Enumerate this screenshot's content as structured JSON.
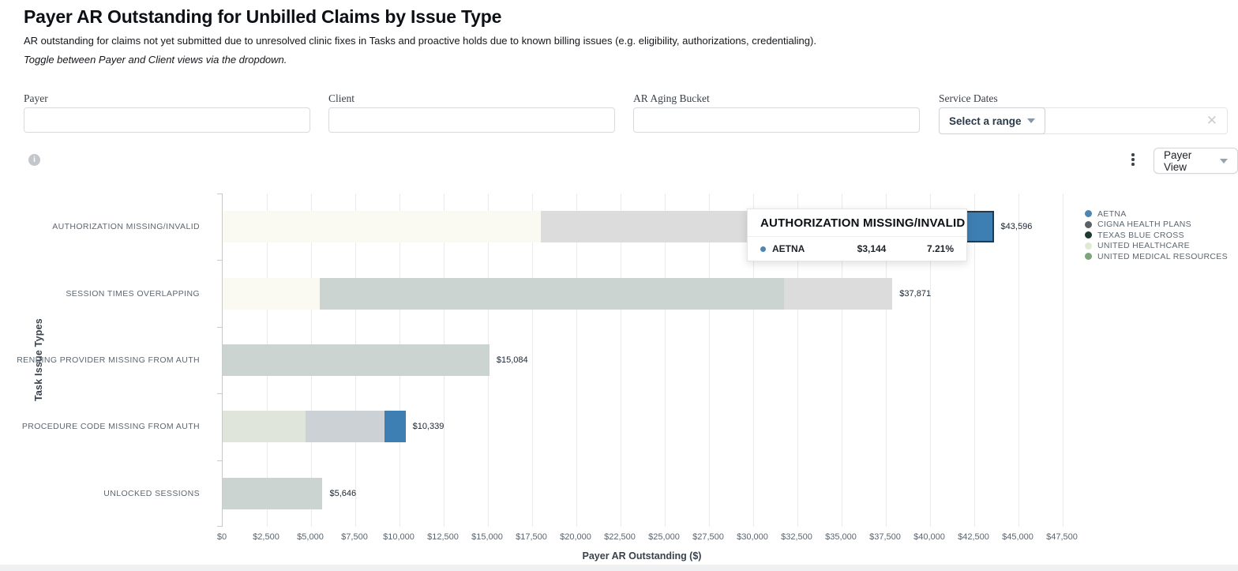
{
  "header": {
    "title": "Payer AR Outstanding for Unbilled Claims by Issue Type",
    "subtitle": "AR outstanding for claims not yet submitted due to unresolved clinic fixes in Tasks and proactive holds due to known billing issues (e.g. eligibility, authorizations, credentialing).",
    "note": "Toggle between Payer and Client views via the dropdown."
  },
  "filters": {
    "payer_label": "Payer",
    "payer_value": "",
    "client_label": "Client",
    "client_value": "",
    "ar_aging_label": "AR Aging Bucket",
    "ar_aging_value": "",
    "service_dates_label": "Service Dates",
    "select_range_label": "Select a range",
    "clear_icon": "✕"
  },
  "toolbar": {
    "info_icon_glyph": "i",
    "view_selector_label": "Payer View"
  },
  "chart_data": {
    "type": "bar",
    "variant": "horizontal-stacked",
    "title": "Payer AR Outstanding for Unbilled Claims by Issue Type",
    "xlabel": "Payer AR Outstanding ($)",
    "ylabel": "Task Issue Types",
    "xlim": [
      0,
      48250
    ],
    "grid": "vertical",
    "legend_position": "right",
    "x_ticks": [
      {
        "value": 0,
        "label": "$0"
      },
      {
        "value": 2500,
        "label": "$2,500"
      },
      {
        "value": 5000,
        "label": "$5,000"
      },
      {
        "value": 7500,
        "label": "$7,500"
      },
      {
        "value": 10000,
        "label": "$10,000"
      },
      {
        "value": 12500,
        "label": "$12,500"
      },
      {
        "value": 15000,
        "label": "$15,000"
      },
      {
        "value": 17500,
        "label": "$17,500"
      },
      {
        "value": 20000,
        "label": "$20,000"
      },
      {
        "value": 22500,
        "label": "$22,500"
      },
      {
        "value": 25000,
        "label": "$25,000"
      },
      {
        "value": 27500,
        "label": "$27,500"
      },
      {
        "value": 30000,
        "label": "$30,000"
      },
      {
        "value": 32500,
        "label": "$32,500"
      },
      {
        "value": 35000,
        "label": "$35,000"
      },
      {
        "value": 37500,
        "label": "$37,500"
      },
      {
        "value": 40000,
        "label": "$40,000"
      },
      {
        "value": 42500,
        "label": "$42,500"
      },
      {
        "value": 45000,
        "label": "$45,000"
      },
      {
        "value": 47500,
        "label": "$47,500"
      }
    ],
    "legend": [
      {
        "name": "AETNA",
        "color": "#4d86b0"
      },
      {
        "name": "CIGNA HEALTH PLANS",
        "color": "#5c6166"
      },
      {
        "name": "TEXAS BLUE CROSS",
        "color": "#1c3a2d"
      },
      {
        "name": "UNITED HEALTHCARE",
        "color": "#dfe9d3"
      },
      {
        "name": "UNITED MEDICAL RESOURCES",
        "color": "#7da57a"
      }
    ],
    "rows": [
      {
        "category": "AUTHORIZATION MISSING/INVALID",
        "total": 43596,
        "total_label": "$43,596",
        "segments": [
          {
            "series": "UNITED HEALTHCARE",
            "value": 18000,
            "color": "#fafaf2",
            "dimmed": true
          },
          {
            "series": "CIGNA HEALTH PLANS",
            "value": 22452,
            "color": "#dcdcdc",
            "dimmed": true
          },
          {
            "series": "AETNA",
            "value": 3144,
            "color": "#3d7fb2",
            "highlighted": true
          }
        ]
      },
      {
        "category": "SESSION TIMES OVERLAPPING",
        "total": 37871,
        "total_label": "$37,871",
        "segments": [
          {
            "series": "UNITED HEALTHCARE",
            "value": 5500,
            "color": "#fafaf2",
            "dimmed": true
          },
          {
            "series": "TEXAS BLUE CROSS",
            "value": 26250,
            "color": "#ccd4d2",
            "dimmed": true
          },
          {
            "series": "CIGNA HEALTH PLANS",
            "value": 6121,
            "color": "#dcdcdc",
            "dimmed": true
          }
        ]
      },
      {
        "category": "RENDING PROVIDER MISSING FROM AUTH",
        "total": 15084,
        "total_label": "$15,084",
        "segments": [
          {
            "series": "TEXAS BLUE CROSS",
            "value": 15084,
            "color": "#ccd4d2",
            "dimmed": true
          }
        ]
      },
      {
        "category": "PROCEDURE CODE MISSING FROM AUTH",
        "total": 10339,
        "total_label": "$10,339",
        "segments": [
          {
            "series": "UNITED MEDICAL RESOURCES",
            "value": 4700,
            "color": "#e0e5dc",
            "dimmed": true
          },
          {
            "series": "CIGNA HEALTH PLANS",
            "value": 4450,
            "color": "#cbd1d4",
            "dimmed": true
          },
          {
            "series": "AETNA",
            "value": 1189,
            "color": "#3d7fb2"
          }
        ]
      },
      {
        "category": "UNLOCKED SESSIONS",
        "total": 5646,
        "total_label": "$5,646",
        "segments": [
          {
            "series": "TEXAS BLUE CROSS",
            "value": 5646,
            "color": "#ccd4d2",
            "dimmed": true
          }
        ]
      }
    ],
    "tooltip": {
      "header": "AUTHORIZATION MISSING/INVALID",
      "rows": [
        {
          "series": "AETNA",
          "dot_color": "#4d86b0",
          "value_label": "$3,144",
          "percent_label": "7.21%"
        }
      ]
    }
  }
}
